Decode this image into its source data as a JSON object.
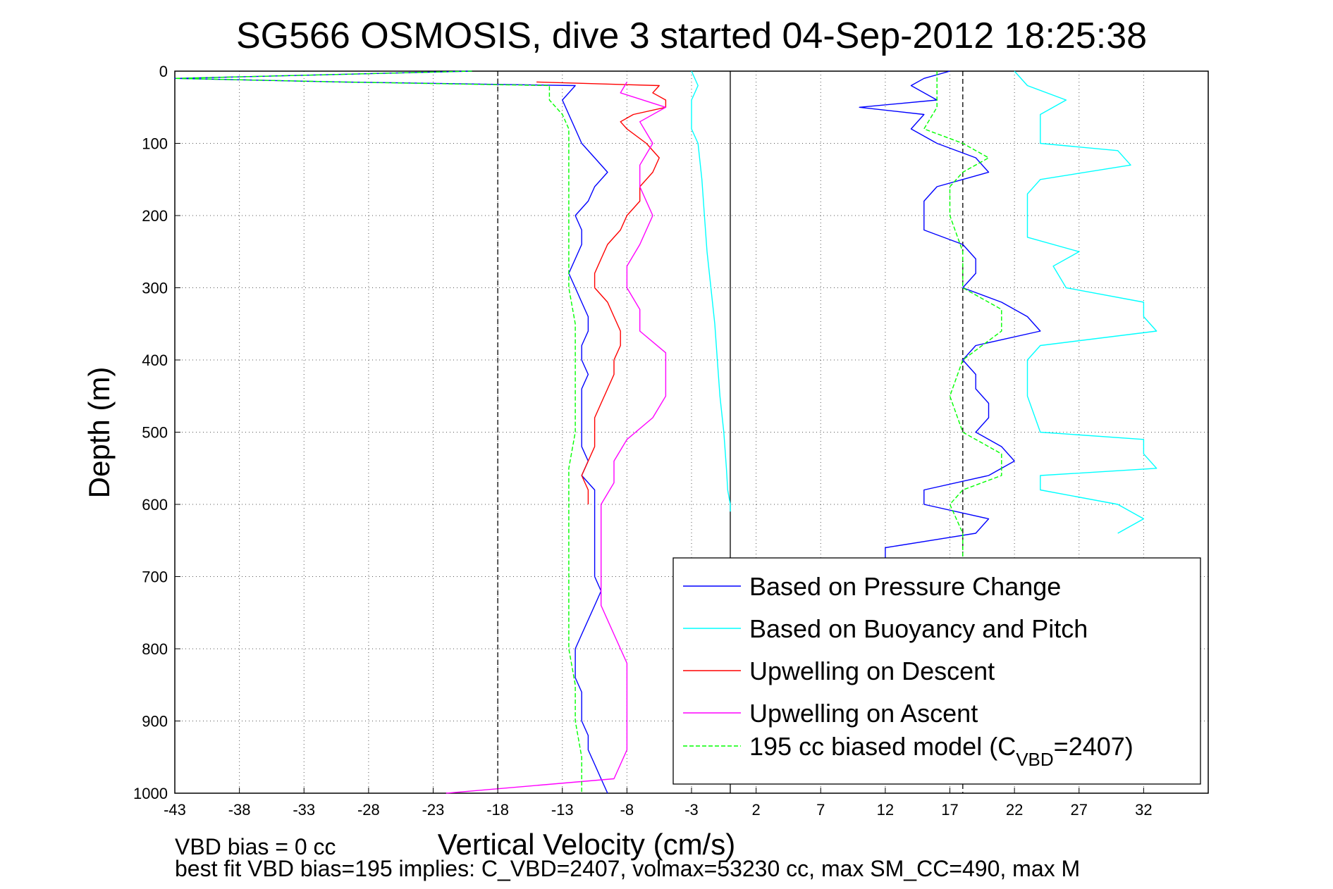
{
  "chart_data": {
    "type": "line",
    "title": "SG566 OSMOSIS, dive 3 started 04-Sep-2012 18:25:38",
    "xlabel": "Vertical Velocity (cm/s)",
    "ylabel": "Depth (m)",
    "xlim": [
      -43,
      37
    ],
    "ylim": [
      0,
      1000
    ],
    "y_reversed": true,
    "grid": true,
    "xticks": [
      -43,
      -38,
      -33,
      -28,
      -23,
      -18,
      -13,
      -8,
      -3,
      2,
      7,
      12,
      17,
      22,
      27,
      32
    ],
    "yticks": [
      0,
      100,
      200,
      300,
      400,
      500,
      600,
      700,
      800,
      900,
      1000
    ],
    "reference_lines": [
      {
        "x": -18,
        "style": "dashed",
        "color": "#000000"
      },
      {
        "x": 0,
        "style": "solid",
        "color": "#000000"
      },
      {
        "x": 18,
        "style": "dashed",
        "color": "#000000"
      }
    ],
    "legend_position": "bottom-right",
    "series": [
      {
        "name": "Based on Pressure Change",
        "color": "#0000ff",
        "phase": "descent",
        "depth": [
          0,
          10,
          15,
          20,
          40,
          60,
          80,
          100,
          120,
          140,
          160,
          180,
          200,
          220,
          240,
          260,
          280,
          300,
          320,
          340,
          360,
          380,
          400,
          420,
          440,
          460,
          480,
          500,
          520,
          540,
          560,
          580,
          600,
          620,
          640,
          660,
          680,
          700,
          720,
          740,
          760,
          780,
          800,
          820,
          840,
          860,
          880,
          900,
          920,
          940,
          960,
          980,
          1000
        ],
        "velocity": [
          -20,
          -43,
          -30,
          -12,
          -13,
          -12.5,
          -12,
          -11.5,
          -10.5,
          -9.5,
          -10.5,
          -11,
          -12,
          -11.5,
          -11.5,
          -12,
          -12.5,
          -12,
          -11.5,
          -11,
          -11,
          -11.5,
          -11.5,
          -11,
          -11.5,
          -11.5,
          -11.5,
          -11.5,
          -11.5,
          -11,
          -11.5,
          -10.5,
          -10.5,
          -10.5,
          -10.5,
          -10.5,
          -10.5,
          -10.5,
          -10,
          -10.5,
          -11,
          -11.5,
          -12,
          -12,
          -12,
          -11.5,
          -11.5,
          -11.5,
          -11,
          -11,
          -10.5,
          -10,
          -9.5
        ]
      },
      {
        "name": "Based on Pressure Change",
        "color": "#0000ff",
        "phase": "ascent",
        "depth": [
          0,
          10,
          20,
          40,
          50,
          60,
          80,
          100,
          120,
          140,
          160,
          180,
          200,
          220,
          240,
          260,
          280,
          300,
          320,
          340,
          360,
          380,
          400,
          420,
          440,
          460,
          480,
          500,
          520,
          540,
          560,
          580,
          600,
          620,
          640,
          660,
          680
        ],
        "velocity": [
          17,
          15,
          14,
          16,
          10,
          15,
          14,
          16,
          19,
          20,
          16,
          15,
          15,
          15,
          18,
          19,
          19,
          18,
          21,
          23,
          24,
          19,
          18,
          19,
          19,
          20,
          20,
          19,
          21,
          22,
          20,
          15,
          15,
          20,
          19,
          12,
          12
        ]
      },
      {
        "name": "Based on Buoyancy and Pitch",
        "color": "#00ffff",
        "phase": "descent",
        "depth": [
          0,
          20,
          40,
          60,
          80,
          100,
          150,
          200,
          250,
          300,
          350,
          400,
          450,
          500,
          550,
          580,
          600,
          610
        ],
        "velocity": [
          -3,
          -2.5,
          -3,
          -3,
          -3,
          -2.5,
          -2.2,
          -2,
          -1.8,
          -1.5,
          -1.2,
          -1,
          -0.8,
          -0.5,
          -0.3,
          -0.2,
          0,
          0
        ]
      },
      {
        "name": "Based on Buoyancy and Pitch",
        "color": "#00ffff",
        "phase": "ascent",
        "depth": [
          0,
          20,
          40,
          60,
          80,
          100,
          110,
          130,
          150,
          170,
          200,
          230,
          250,
          270,
          300,
          320,
          340,
          360,
          380,
          400,
          450,
          500,
          510,
          530,
          550,
          560,
          580,
          600,
          620,
          640
        ],
        "velocity": [
          22,
          23,
          26,
          24,
          24,
          24,
          30,
          31,
          24,
          23,
          23,
          23,
          27,
          25,
          26,
          32,
          32,
          33,
          24,
          23,
          23,
          24,
          32,
          32,
          33,
          24,
          24,
          30,
          32,
          30
        ]
      },
      {
        "name": "Upwelling on Descent",
        "color": "#ff0000",
        "depth": [
          15,
          20,
          30,
          40,
          50,
          60,
          70,
          80,
          100,
          120,
          140,
          160,
          180,
          200,
          220,
          240,
          260,
          280,
          300,
          320,
          340,
          360,
          380,
          400,
          420,
          440,
          460,
          480,
          500,
          520,
          540,
          560,
          580,
          600
        ],
        "velocity": [
          -15,
          -5.5,
          -6,
          -5,
          -5,
          -7.5,
          -8.5,
          -8,
          -6.5,
          -5.5,
          -6,
          -7,
          -7,
          -8,
          -8.5,
          -9.5,
          -10,
          -10.5,
          -10.5,
          -9.5,
          -9,
          -8.5,
          -8.5,
          -9,
          -9,
          -9.5,
          -10,
          -10.5,
          -10.5,
          -10.5,
          -11,
          -11.5,
          -11,
          -11
        ]
      },
      {
        "name": "Upwelling on Ascent",
        "color": "#ff00ff",
        "depth": [
          15,
          30,
          50,
          70,
          100,
          130,
          160,
          200,
          240,
          270,
          300,
          330,
          360,
          390,
          420,
          450,
          480,
          510,
          540,
          570,
          600,
          630,
          660,
          700,
          740,
          780,
          820,
          860,
          900,
          940,
          980,
          1000
        ],
        "velocity": [
          -8,
          -8.5,
          -5,
          -7,
          -6,
          -7,
          -7,
          -6,
          -7,
          -8,
          -8,
          -7,
          -7,
          -5,
          -5,
          -5,
          -6,
          -8,
          -9,
          -9,
          -10,
          -10,
          -10,
          -10,
          -10,
          -9,
          -8,
          -8,
          -8,
          -8,
          -9,
          -22
        ]
      },
      {
        "name": "195 cc biased model (C_VBD=2407)",
        "color": "#00ff00",
        "style": "dashed",
        "phase": "descent",
        "depth": [
          0,
          10,
          15,
          20,
          40,
          60,
          80,
          100,
          150,
          200,
          250,
          300,
          350,
          400,
          450,
          500,
          550,
          600,
          650,
          700,
          750,
          800,
          850,
          900,
          950,
          1000
        ],
        "velocity": [
          -20,
          -43,
          -30,
          -14,
          -14,
          -13,
          -12.5,
          -12.5,
          -12.5,
          -12.5,
          -12.5,
          -12.5,
          -12,
          -12,
          -12,
          -12,
          -12.5,
          -12.5,
          -12.5,
          -12.5,
          -12.5,
          -12.5,
          -12,
          -12,
          -11.5,
          -11.5
        ]
      },
      {
        "name": "195 cc biased model (C_VBD=2407)",
        "color": "#00ff00",
        "style": "dashed",
        "phase": "ascent",
        "depth": [
          0,
          20,
          50,
          80,
          100,
          120,
          140,
          160,
          200,
          250,
          300,
          330,
          360,
          400,
          450,
          500,
          530,
          560,
          580,
          600,
          640,
          680
        ],
        "velocity": [
          16,
          16,
          16,
          15,
          18,
          20,
          18,
          17,
          17,
          18,
          18,
          21,
          21,
          18,
          17,
          18,
          21,
          21,
          18,
          17,
          18,
          18
        ]
      }
    ]
  },
  "legend": {
    "entries": [
      {
        "label": "Based on Pressure Change",
        "color": "#0000ff",
        "dashed": false
      },
      {
        "label": "Based on Buoyancy and Pitch",
        "color": "#00ffff",
        "dashed": false
      },
      {
        "label": "Upwelling on Descent",
        "color": "#ff0000",
        "dashed": false
      },
      {
        "label": "Upwelling on Ascent",
        "color": "#ff00ff",
        "dashed": false
      },
      {
        "label": "195 cc biased model (C",
        "sub": "VBD",
        "tail": "=2407)",
        "color": "#00ff00",
        "dashed": true
      }
    ]
  },
  "footer": {
    "line1": "VBD bias = 0 cc",
    "line2": "best fit VBD bias=195 implies: C_VBD=2407, volmax=53230 cc, max SM_CC=490, max M"
  }
}
